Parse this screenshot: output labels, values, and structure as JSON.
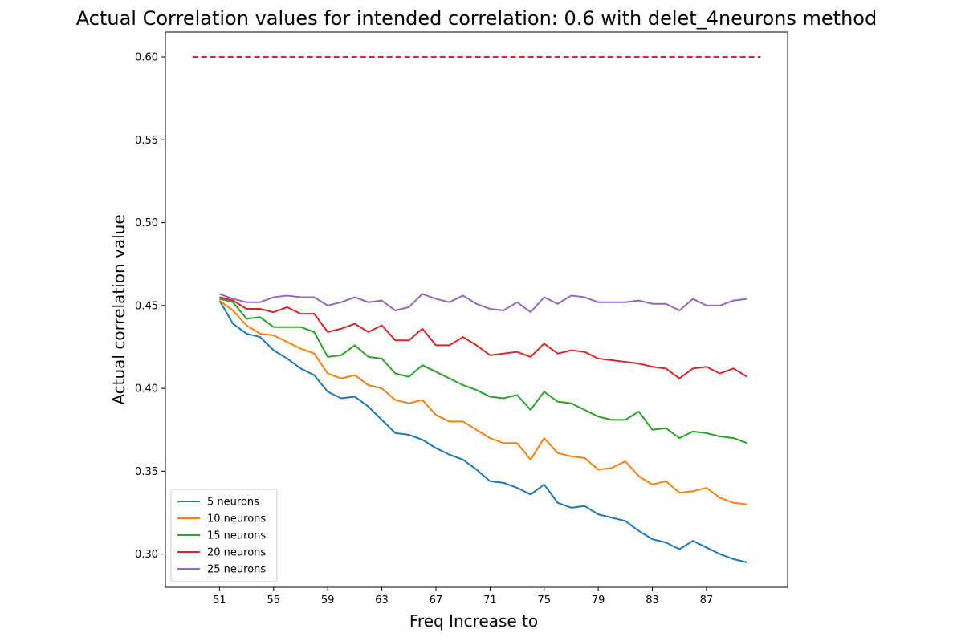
{
  "chart_data": {
    "type": "line",
    "title": "Actual Correlation values for intended correlation:  0.6 with delet_4neurons method",
    "xlabel": "Freq Increase to",
    "ylabel": "Actual correlation value",
    "xlim": [
      47,
      93
    ],
    "ylim": [
      0.28,
      0.615
    ],
    "xticks": [
      51,
      55,
      59,
      63,
      67,
      71,
      75,
      79,
      83,
      87
    ],
    "yticks": [
      0.3,
      0.35,
      0.4,
      0.45,
      0.5,
      0.55,
      0.6
    ],
    "legend_position": "lower-left",
    "x": [
      51,
      52,
      53,
      54,
      55,
      56,
      57,
      58,
      59,
      60,
      61,
      62,
      63,
      64,
      65,
      66,
      67,
      68,
      69,
      70,
      71,
      72,
      73,
      74,
      75,
      76,
      77,
      78,
      79,
      80,
      81,
      82,
      83,
      84,
      85,
      86,
      87,
      88,
      89,
      90
    ],
    "reference_line": {
      "y": 0.6,
      "x_range": [
        49,
        91
      ],
      "color": "#d62728",
      "style": "dashed"
    },
    "series": [
      {
        "name": "5 neurons",
        "color": "#1f77b4",
        "values": [
          0.453,
          0.439,
          0.433,
          0.431,
          0.423,
          0.418,
          0.412,
          0.408,
          0.398,
          0.394,
          0.395,
          0.389,
          0.381,
          0.373,
          0.372,
          0.369,
          0.364,
          0.36,
          0.357,
          0.351,
          0.344,
          0.343,
          0.34,
          0.336,
          0.342,
          0.331,
          0.328,
          0.329,
          0.324,
          0.322,
          0.32,
          0.314,
          0.309,
          0.307,
          0.303,
          0.308,
          0.304,
          0.3,
          0.297,
          0.295
        ]
      },
      {
        "name": "10 neurons",
        "color": "#ff7f0e",
        "values": [
          0.453,
          0.447,
          0.438,
          0.433,
          0.432,
          0.428,
          0.424,
          0.421,
          0.409,
          0.406,
          0.408,
          0.402,
          0.4,
          0.393,
          0.391,
          0.393,
          0.384,
          0.38,
          0.38,
          0.375,
          0.37,
          0.367,
          0.367,
          0.357,
          0.37,
          0.361,
          0.359,
          0.358,
          0.351,
          0.352,
          0.356,
          0.347,
          0.342,
          0.344,
          0.337,
          0.338,
          0.34,
          0.334,
          0.331,
          0.33
        ]
      },
      {
        "name": "15 neurons",
        "color": "#2ca02c",
        "values": [
          0.454,
          0.452,
          0.442,
          0.443,
          0.437,
          0.437,
          0.437,
          0.434,
          0.419,
          0.42,
          0.426,
          0.419,
          0.418,
          0.409,
          0.407,
          0.414,
          0.41,
          0.406,
          0.402,
          0.399,
          0.395,
          0.394,
          0.396,
          0.387,
          0.398,
          0.392,
          0.391,
          0.387,
          0.383,
          0.381,
          0.381,
          0.386,
          0.375,
          0.376,
          0.37,
          0.374,
          0.373,
          0.371,
          0.37,
          0.367
        ]
      },
      {
        "name": "20 neurons",
        "color": "#d62728",
        "values": [
          0.455,
          0.453,
          0.448,
          0.448,
          0.446,
          0.449,
          0.445,
          0.445,
          0.434,
          0.436,
          0.439,
          0.434,
          0.438,
          0.429,
          0.429,
          0.436,
          0.426,
          0.426,
          0.431,
          0.426,
          0.42,
          0.421,
          0.422,
          0.419,
          0.427,
          0.421,
          0.423,
          0.422,
          0.418,
          0.417,
          0.416,
          0.415,
          0.413,
          0.412,
          0.406,
          0.412,
          0.413,
          0.409,
          0.412,
          0.407
        ]
      },
      {
        "name": "25 neurons",
        "color": "#9467bd",
        "values": [
          0.457,
          0.454,
          0.452,
          0.452,
          0.455,
          0.456,
          0.455,
          0.455,
          0.45,
          0.452,
          0.455,
          0.452,
          0.453,
          0.447,
          0.449,
          0.457,
          0.454,
          0.452,
          0.456,
          0.451,
          0.448,
          0.447,
          0.452,
          0.446,
          0.455,
          0.451,
          0.456,
          0.455,
          0.452,
          0.452,
          0.452,
          0.453,
          0.451,
          0.451,
          0.447,
          0.454,
          0.45,
          0.45,
          0.453,
          0.454
        ]
      }
    ]
  }
}
